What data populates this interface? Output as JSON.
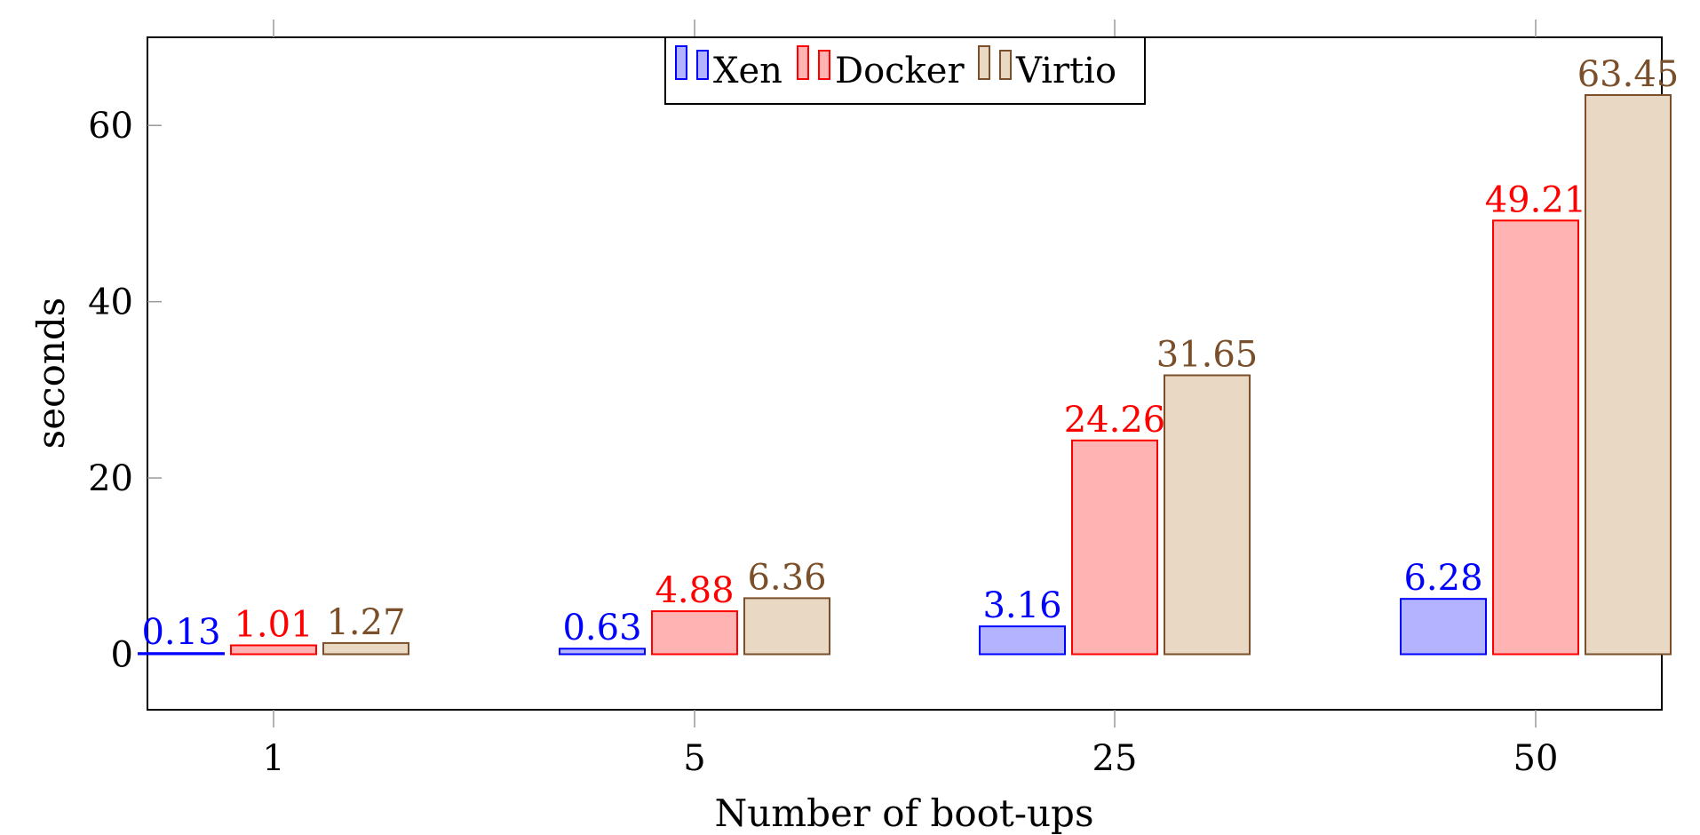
{
  "chart_data": {
    "type": "bar",
    "xlabel": "Number of boot-ups",
    "ylabel": "seconds",
    "categories": [
      "1",
      "5",
      "25",
      "50"
    ],
    "series": [
      {
        "name": "Xen",
        "values": [
          0.13,
          0.63,
          3.16,
          6.28
        ],
        "fill": "#b3b3ff",
        "stroke": "#0000ff",
        "label_color": "#0000ff"
      },
      {
        "name": "Docker",
        "values": [
          1.01,
          4.88,
          24.26,
          49.21
        ],
        "fill": "#ffb3b3",
        "stroke": "#ff0000",
        "label_color": "#ff0000"
      },
      {
        "name": "Virtio",
        "values": [
          1.27,
          6.36,
          31.65,
          63.45
        ],
        "fill": "#e8d8c4",
        "stroke": "#7a4f2a",
        "label_color": "#7a4f2a"
      }
    ],
    "y_ticks": [
      0,
      20,
      40,
      60
    ],
    "ylim": [
      -6.3,
      70
    ],
    "value_labels": true,
    "grid": false,
    "legend_position": "top-center"
  }
}
